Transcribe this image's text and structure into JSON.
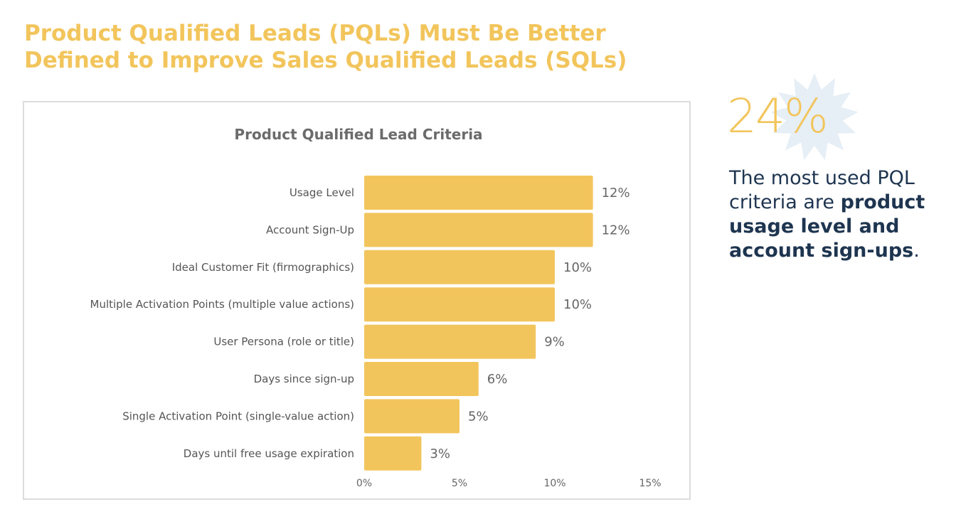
{
  "headline": {
    "line1": "Product Qualified Leads (PQLs) Must Be Better",
    "line2": "Defined to Improve Sales Qualified Leads (SQLs)"
  },
  "colors": {
    "accent": "#F2C55C",
    "navy": "#1E3550",
    "burst": "#E6EEF6"
  },
  "stat": {
    "value": "24%",
    "desc_pre": "The most used PQL criteria are ",
    "desc_bold": "product usage level and account sign-ups",
    "desc_post": "."
  },
  "chart_data": {
    "type": "bar",
    "orientation": "horizontal",
    "title": "Product Qualified Lead Criteria",
    "xlabel": "",
    "ylabel": "",
    "xlim": [
      0,
      15
    ],
    "categories": [
      "Usage Level",
      "Account Sign-Up",
      "Ideal Customer Fit (firmographics)",
      "Multiple Activation Points (multiple value actions)",
      "User Persona (role or title)",
      "Days since sign-up",
      "Single Activation Point (single-value action)",
      "Days until free usage expiration"
    ],
    "values": [
      12,
      12,
      10,
      10,
      9,
      6,
      5,
      3
    ],
    "value_labels": [
      "12%",
      "12%",
      "10%",
      "10%",
      "9%",
      "6%",
      "5%",
      "3%"
    ],
    "ticks": [
      0,
      5,
      10,
      15
    ],
    "tick_labels": [
      "0%",
      "5%",
      "10%",
      "15%"
    ],
    "grid": false,
    "legend": "none"
  }
}
